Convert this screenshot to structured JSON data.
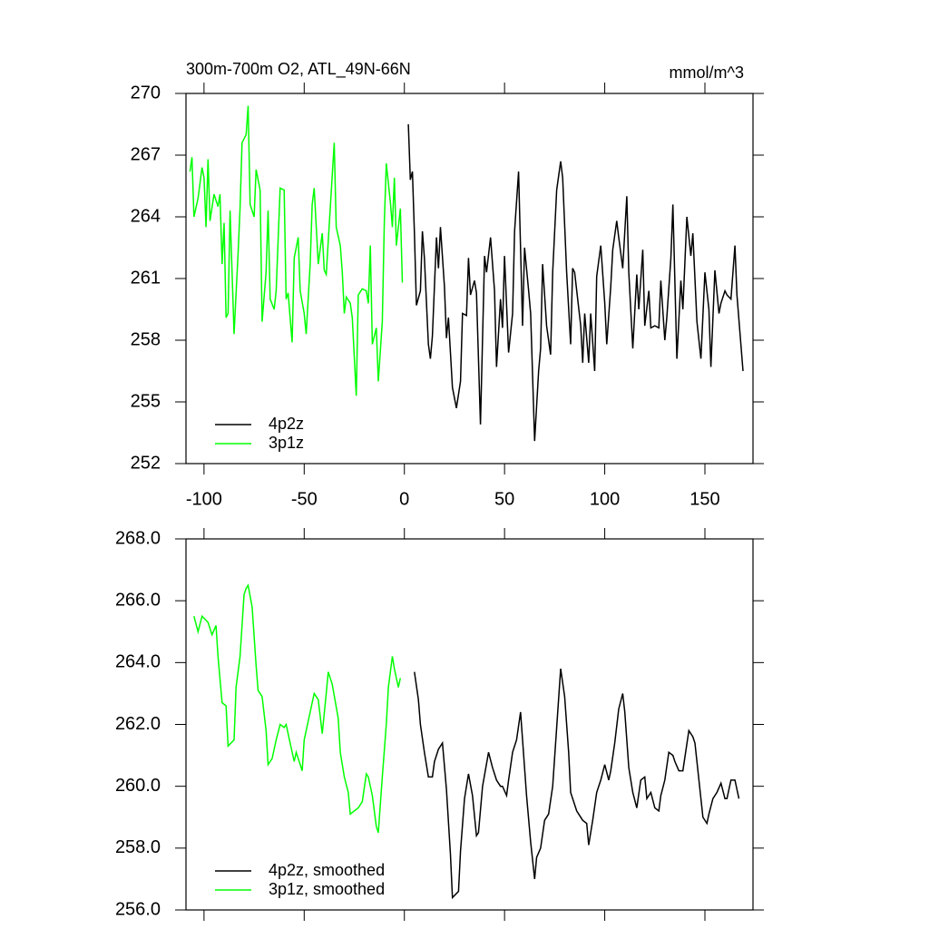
{
  "chart_data": [
    {
      "type": "line",
      "title": "300m-700m O2, ATL_49N-66N",
      "units": "mmol/m^3",
      "xlim": [
        -109,
        174
      ],
      "ylim": [
        252,
        270
      ],
      "xticks": [
        -100,
        -50,
        0,
        50,
        100,
        150
      ],
      "yticks": [
        252,
        255,
        258,
        261,
        264,
        267,
        270
      ],
      "legend": "lower left",
      "series": [
        {
          "name": "4p2z",
          "color": "#000000",
          "x": [
            2,
            3,
            4,
            5,
            6,
            8,
            9,
            10,
            12,
            13,
            14,
            16,
            17,
            18,
            20,
            21,
            22,
            24,
            26,
            28,
            29,
            31,
            32,
            33,
            35,
            36,
            38,
            40,
            41,
            43,
            45,
            46,
            48,
            49,
            50,
            52,
            54,
            55,
            57,
            59,
            60,
            62,
            63,
            65,
            67,
            68,
            69,
            71,
            73,
            74,
            76,
            78,
            79,
            81,
            83,
            84,
            85,
            88,
            89,
            90,
            92,
            93,
            95,
            96,
            98,
            100,
            101,
            103,
            104,
            106,
            107,
            109,
            111,
            112,
            114,
            116,
            117,
            119,
            120,
            122,
            123,
            125,
            127,
            128,
            130,
            131,
            133,
            134,
            136,
            138,
            139,
            141,
            143,
            144,
            146,
            148,
            150,
            152,
            153,
            155,
            157,
            158,
            160,
            161,
            163,
            165,
            166,
            169
          ],
          "values": [
            268.5,
            265.8,
            266.2,
            263.2,
            259.7,
            260.4,
            263.3,
            262.0,
            257.8,
            257.1,
            258.2,
            263.0,
            261.5,
            263.5,
            260.6,
            258.1,
            259.1,
            255.7,
            254.7,
            256.0,
            259.3,
            259.2,
            262.0,
            260.2,
            260.9,
            260.3,
            253.9,
            262.1,
            261.3,
            263.0,
            260.4,
            256.7,
            260.0,
            258.6,
            262.1,
            257.4,
            259.3,
            263.3,
            266.2,
            258.7,
            262.5,
            260.4,
            259.3,
            253.1,
            256.5,
            257.6,
            261.7,
            258.7,
            257.3,
            261.3,
            265.3,
            266.7,
            265.9,
            261.3,
            257.8,
            261.5,
            261.3,
            258.7,
            256.9,
            259.3,
            256.9,
            259.3,
            256.5,
            261.1,
            262.6,
            259.8,
            257.8,
            260.6,
            262.4,
            263.8,
            263.0,
            261.5,
            265.0,
            261.3,
            257.6,
            261.2,
            259.5,
            262.4,
            258.7,
            260.4,
            258.6,
            258.7,
            258.6,
            260.9,
            258.0,
            259.1,
            262.0,
            264.6,
            257.1,
            260.9,
            259.5,
            264.0,
            262.1,
            263.2,
            258.9,
            257.1,
            261.3,
            259.5,
            256.7,
            261.4,
            259.3,
            259.8,
            260.4,
            260.2,
            260.0,
            262.6,
            260.2,
            256.5
          ]
        },
        {
          "name": "3p1z",
          "color": "#00ff00",
          "x": [
            -107,
            -106,
            -105,
            -103,
            -101,
            -100,
            -99,
            -98,
            -97,
            -95,
            -93,
            -92,
            -91,
            -90,
            -89,
            -88,
            -87,
            -85,
            -83,
            -82,
            -81,
            -79,
            -78,
            -77,
            -75,
            -74,
            -72,
            -71,
            -69,
            -68,
            -67,
            -65,
            -64,
            -62,
            -60,
            -59,
            -58,
            -56,
            -55,
            -53,
            -52,
            -50,
            -49,
            -47,
            -46,
            -45,
            -43,
            -41,
            -40,
            -39,
            -37,
            -35,
            -34,
            -32,
            -31,
            -30,
            -29,
            -27,
            -26,
            -24,
            -23,
            -21,
            -19,
            -18,
            -17,
            -16,
            -14,
            -13,
            -11,
            -10,
            -9,
            -7,
            -6,
            -5,
            -4,
            -2,
            -1
          ],
          "values": [
            266.2,
            266.9,
            264.0,
            264.9,
            266.4,
            265.9,
            263.5,
            266.8,
            263.8,
            265.1,
            264.5,
            265.1,
            261.7,
            263.7,
            259.1,
            259.3,
            264.3,
            258.3,
            262.2,
            264.4,
            267.6,
            268.0,
            269.4,
            264.6,
            264.0,
            266.3,
            265.3,
            258.9,
            261.3,
            264.3,
            260.0,
            259.5,
            260.4,
            265.4,
            265.3,
            260.0,
            260.3,
            257.9,
            262.0,
            263.0,
            260.4,
            259.3,
            258.3,
            261.7,
            264.6,
            265.4,
            261.7,
            263.2,
            261.4,
            261.2,
            264.4,
            267.6,
            263.5,
            262.6,
            261.3,
            259.3,
            260.1,
            259.8,
            259.1,
            255.3,
            260.2,
            260.5,
            260.4,
            259.8,
            262.6,
            257.8,
            258.6,
            256.0,
            258.9,
            263.7,
            266.6,
            264.7,
            263.5,
            265.9,
            262.6,
            264.4,
            260.8
          ]
        }
      ]
    },
    {
      "type": "line",
      "xlim": [
        -109,
        174
      ],
      "ylim": [
        256,
        268
      ],
      "yticks": [
        {
          "value": 256,
          "label": "256.0"
        },
        {
          "value": 258,
          "label": "258.0"
        },
        {
          "value": 260,
          "label": "260.0"
        },
        {
          "value": 262,
          "label": "262.0"
        },
        {
          "value": 264,
          "label": "264.0"
        },
        {
          "value": 266,
          "label": "266.0"
        },
        {
          "value": 268,
          "label": "268.0"
        }
      ],
      "legend": "lower left",
      "series": [
        {
          "name": "4p2z, smoothed",
          "color": "#000000",
          "x": [
            5,
            7,
            8,
            10,
            12,
            14,
            15,
            17,
            19,
            21,
            23,
            24,
            27,
            28,
            30,
            32,
            34,
            36,
            37,
            39,
            42,
            44,
            46,
            48,
            49,
            51,
            52,
            54,
            56,
            58,
            59,
            61,
            63,
            65,
            66,
            68,
            70,
            72,
            74,
            76,
            78,
            80,
            82,
            83,
            86,
            88,
            89,
            91,
            92,
            94,
            96,
            98,
            100,
            102,
            103,
            105,
            107,
            109,
            110,
            112,
            114,
            116,
            118,
            120,
            121,
            123,
            125,
            127,
            128,
            130,
            132,
            134,
            135,
            137,
            139,
            142,
            144,
            145,
            147,
            149,
            151,
            152,
            154,
            156,
            158,
            160,
            161,
            163,
            165,
            167
          ],
          "values": [
            263.7,
            262.8,
            262.0,
            261.1,
            260.3,
            260.3,
            260.8,
            261.2,
            261.4,
            259.9,
            257.8,
            256.4,
            256.6,
            257.9,
            259.6,
            260.4,
            259.7,
            258.4,
            258.5,
            260.0,
            261.1,
            260.6,
            260.2,
            260.0,
            260.0,
            259.7,
            260.2,
            261.1,
            261.5,
            262.4,
            261.5,
            259.7,
            258.2,
            257.0,
            257.7,
            258.0,
            258.9,
            259.1,
            260.0,
            261.9,
            263.8,
            262.9,
            261.1,
            259.8,
            259.2,
            259.0,
            258.9,
            258.8,
            258.1,
            258.9,
            259.8,
            260.2,
            260.7,
            260.2,
            260.5,
            261.4,
            262.5,
            263.0,
            262.4,
            260.6,
            259.8,
            259.3,
            260.2,
            260.3,
            259.6,
            259.8,
            259.3,
            259.2,
            259.7,
            260.2,
            261.1,
            261.0,
            260.8,
            260.5,
            260.5,
            261.8,
            261.6,
            261.4,
            260.2,
            259.0,
            258.8,
            259.1,
            259.6,
            259.8,
            260.1,
            259.6,
            259.6,
            260.2,
            260.2,
            259.6
          ]
        },
        {
          "name": "3p1z, smoothed",
          "color": "#00ff00",
          "x": [
            -105,
            -103,
            -101,
            -98,
            -96,
            -94,
            -93,
            -91,
            -89,
            -88,
            -85,
            -84,
            -82,
            -80,
            -79,
            -78,
            -76,
            -74,
            -73,
            -71,
            -69,
            -68,
            -66,
            -64,
            -62,
            -60,
            -59,
            -57,
            -55,
            -54,
            -51,
            -50,
            -47,
            -45,
            -43,
            -41,
            -39,
            -38,
            -36,
            -33,
            -32,
            -30,
            -28,
            -27,
            -25,
            -23,
            -21,
            -19,
            -18,
            -16,
            -14,
            -13,
            -11,
            -9,
            -8,
            -6,
            -5,
            -3,
            -2
          ],
          "values": [
            265.5,
            265.0,
            265.5,
            265.3,
            264.9,
            265.2,
            264.2,
            262.7,
            262.6,
            261.3,
            261.5,
            263.2,
            264.2,
            266.2,
            266.4,
            266.5,
            265.8,
            263.9,
            263.1,
            262.9,
            261.8,
            260.7,
            260.9,
            261.5,
            262.0,
            261.9,
            262.0,
            261.4,
            260.8,
            261.1,
            260.5,
            261.5,
            262.4,
            263.0,
            262.8,
            261.7,
            263.0,
            263.7,
            263.3,
            262.2,
            261.1,
            260.3,
            259.8,
            259.1,
            259.2,
            259.3,
            259.5,
            260.4,
            260.3,
            259.7,
            258.7,
            258.5,
            260.3,
            262.0,
            263.2,
            264.2,
            263.8,
            263.2,
            263.5
          ]
        }
      ]
    }
  ]
}
